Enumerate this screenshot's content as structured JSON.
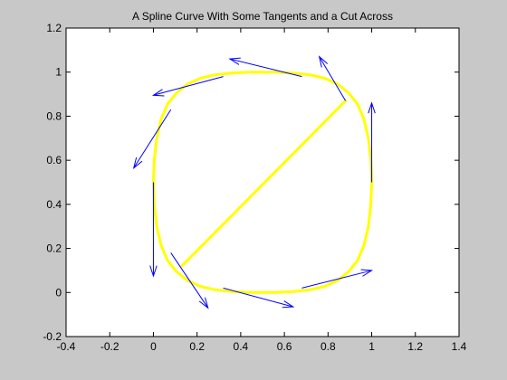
{
  "chart_data": {
    "type": "line",
    "title": "A Spline Curve With Some Tangents and a Cut Across",
    "xlabel": "",
    "ylabel": "",
    "xlim": [
      -0.4,
      1.4
    ],
    "ylim": [
      -0.2,
      1.2
    ],
    "x_ticks": [
      "-0.4",
      "-0.2",
      "0",
      "0.2",
      "0.4",
      "0.6",
      "0.8",
      "1",
      "1.2",
      "1.4"
    ],
    "y_ticks": [
      "-0.2",
      "0",
      "0.2",
      "0.4",
      "0.6",
      "0.8",
      "1",
      "1.2"
    ],
    "grid": false,
    "figure_background": "#c8c8c8",
    "axes_background": "#ffffff",
    "series": [
      {
        "role": "spline-curve",
        "color": "#ffff00",
        "x": [
          1.0,
          0.996,
          0.985,
          0.965,
          0.935,
          0.895,
          0.845,
          0.785,
          0.715,
          0.64,
          0.56,
          0.5,
          0.44,
          0.36,
          0.285,
          0.215,
          0.155,
          0.105,
          0.065,
          0.035,
          0.015,
          0.004,
          0.0,
          0.004,
          0.015,
          0.035,
          0.065,
          0.105,
          0.155,
          0.215,
          0.285,
          0.36,
          0.44,
          0.5,
          0.56,
          0.64,
          0.715,
          0.785,
          0.845,
          0.895,
          0.935,
          0.965,
          0.985,
          0.996,
          1.0
        ],
        "y": [
          0.5,
          0.6,
          0.7,
          0.785,
          0.855,
          0.905,
          0.945,
          0.972,
          0.988,
          0.996,
          1.0,
          1.0,
          1.0,
          0.996,
          0.988,
          0.972,
          0.945,
          0.905,
          0.855,
          0.785,
          0.7,
          0.6,
          0.5,
          0.4,
          0.3,
          0.215,
          0.145,
          0.095,
          0.055,
          0.028,
          0.012,
          0.004,
          0.0,
          0.0,
          0.0,
          0.004,
          0.012,
          0.028,
          0.055,
          0.095,
          0.145,
          0.215,
          0.3,
          0.4,
          0.5
        ]
      },
      {
        "role": "cut-across",
        "color": "#ffff00",
        "x": [
          0.13,
          0.88
        ],
        "y": [
          0.12,
          0.87
        ]
      }
    ],
    "tangents": {
      "color": "#0000ff",
      "vectors": [
        {
          "x0": 1.0,
          "y0": 0.5,
          "x1": 1.0,
          "y1": 0.86
        },
        {
          "x0": 0.88,
          "y0": 0.87,
          "x1": 0.76,
          "y1": 1.07
        },
        {
          "x0": 0.68,
          "y0": 0.98,
          "x1": 0.35,
          "y1": 1.06
        },
        {
          "x0": 0.32,
          "y0": 0.98,
          "x1": 0.0,
          "y1": 0.895
        },
        {
          "x0": 0.08,
          "y0": 0.83,
          "x1": -0.09,
          "y1": 0.565
        },
        {
          "x0": 0.0,
          "y0": 0.5,
          "x1": 0.0,
          "y1": 0.075
        },
        {
          "x0": 0.08,
          "y0": 0.18,
          "x1": 0.25,
          "y1": -0.07
        },
        {
          "x0": 0.32,
          "y0": 0.02,
          "x1": 0.64,
          "y1": -0.065
        },
        {
          "x0": 0.68,
          "y0": 0.02,
          "x1": 1.0,
          "y1": 0.1
        }
      ]
    }
  }
}
